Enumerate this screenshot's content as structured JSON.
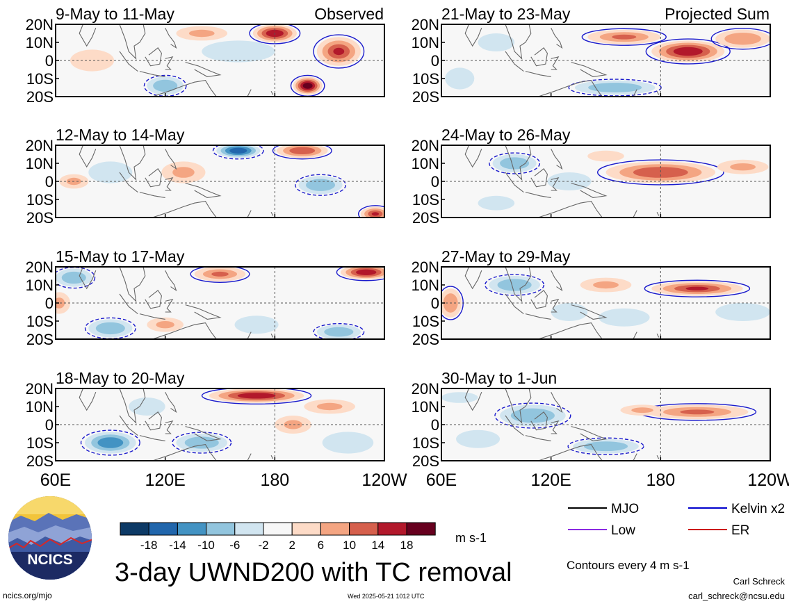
{
  "chart_data": {
    "type": "heatmap",
    "title": "3-day UWND200 with TC removal",
    "units": "m s-1",
    "contour_note": "Contours every 4 m s-1",
    "colorbar": {
      "ticks": [
        "-18",
        "-14",
        "-10",
        "-6",
        "-2",
        "2",
        "6",
        "10",
        "14",
        "18"
      ],
      "colors": [
        "#0d3a66",
        "#2166ac",
        "#4393c3",
        "#92c5de",
        "#d1e5f0",
        "#f7f7f7",
        "#fddbc7",
        "#f4a582",
        "#d6604d",
        "#b2182b",
        "#67001f"
      ]
    },
    "x_ticks": [
      "60E",
      "120E",
      "180",
      "120W"
    ],
    "y_ticks": [
      "20N",
      "10N",
      "0",
      "10S",
      "20S"
    ],
    "x_range_deg_east": [
      60,
      240
    ],
    "y_range_deg_north": [
      -20,
      20
    ],
    "legend": [
      {
        "label": "MJO",
        "color": "#000000"
      },
      {
        "label": "Kelvin x2",
        "color": "#0000cc"
      },
      {
        "label": "Low",
        "color": "#8a2be2"
      },
      {
        "label": "ER",
        "color": "#cc0000"
      }
    ],
    "panels": [
      {
        "col": 0,
        "row": 0,
        "period": "9-May to 11-May",
        "label": "Observed",
        "blobs": [
          [
            180,
            15,
            12,
            5,
            16
          ],
          [
            198,
            -14,
            8,
            5,
            20
          ],
          [
            215,
            5,
            12,
            8,
            14
          ],
          [
            120,
            -14,
            10,
            5,
            -8
          ],
          [
            160,
            5,
            20,
            6,
            -5
          ],
          [
            80,
            0,
            12,
            6,
            4
          ],
          [
            140,
            15,
            14,
            4,
            6
          ]
        ]
      },
      {
        "col": 0,
        "row": 1,
        "period": "12-May to 14-May",
        "label": "",
        "blobs": [
          [
            160,
            17,
            12,
            4,
            -18
          ],
          [
            195,
            17,
            14,
            4,
            12
          ],
          [
            130,
            5,
            12,
            6,
            6
          ],
          [
            205,
            -2,
            12,
            5,
            -8
          ],
          [
            90,
            5,
            12,
            6,
            -6
          ],
          [
            235,
            -18,
            8,
            4,
            14
          ],
          [
            70,
            0,
            8,
            4,
            6
          ]
        ]
      },
      {
        "col": 0,
        "row": 2,
        "period": "15-May to 17-May",
        "label": "",
        "blobs": [
          [
            150,
            16,
            14,
            4,
            10
          ],
          [
            230,
            17,
            14,
            4,
            16
          ],
          [
            70,
            14,
            10,
            5,
            -10
          ],
          [
            90,
            -14,
            12,
            5,
            -8
          ],
          [
            170,
            -12,
            12,
            5,
            -6
          ],
          [
            120,
            -12,
            10,
            4,
            6
          ],
          [
            215,
            -16,
            12,
            4,
            -8
          ],
          [
            62,
            0,
            6,
            6,
            6
          ]
        ]
      },
      {
        "col": 0,
        "row": 3,
        "period": "18-May to 20-May",
        "label": "",
        "blobs": [
          [
            170,
            16,
            26,
            4,
            16
          ],
          [
            210,
            10,
            14,
            4,
            6
          ],
          [
            90,
            -10,
            14,
            6,
            -12
          ],
          [
            140,
            -10,
            14,
            5,
            -10
          ],
          [
            220,
            -10,
            14,
            6,
            -6
          ],
          [
            110,
            10,
            10,
            5,
            -4
          ],
          [
            190,
            0,
            10,
            5,
            6
          ]
        ]
      },
      {
        "col": 1,
        "row": 0,
        "period": "21-May to 23-May",
        "label": "Projected Sum",
        "blobs": [
          [
            195,
            5,
            20,
            6,
            16
          ],
          [
            160,
            13,
            20,
            4,
            10
          ],
          [
            225,
            12,
            15,
            5,
            8
          ],
          [
            155,
            -15,
            22,
            4,
            -8
          ],
          [
            70,
            -10,
            8,
            6,
            -5
          ],
          [
            90,
            10,
            10,
            5,
            -4
          ]
        ]
      },
      {
        "col": 1,
        "row": 1,
        "period": "24-May to 26-May",
        "label": "",
        "blobs": [
          [
            180,
            5,
            30,
            6,
            12
          ],
          [
            100,
            10,
            12,
            5,
            -8
          ],
          [
            130,
            0,
            12,
            5,
            -6
          ],
          [
            225,
            8,
            14,
            4,
            6
          ],
          [
            90,
            -12,
            10,
            4,
            -4
          ],
          [
            150,
            14,
            10,
            3,
            4
          ]
        ]
      },
      {
        "col": 1,
        "row": 2,
        "period": "27-May to 29-May",
        "label": "",
        "blobs": [
          [
            200,
            8,
            25,
            4,
            14
          ],
          [
            150,
            10,
            14,
            4,
            6
          ],
          [
            100,
            10,
            14,
            5,
            -8
          ],
          [
            130,
            -5,
            10,
            5,
            -6
          ],
          [
            160,
            -8,
            14,
            5,
            -6
          ],
          [
            65,
            0,
            6,
            8,
            8
          ],
          [
            225,
            -5,
            15,
            5,
            -4
          ]
        ]
      },
      {
        "col": 1,
        "row": 3,
        "period": "30-May to 1-Jun",
        "label": "",
        "blobs": [
          [
            110,
            5,
            18,
            6,
            -10
          ],
          [
            200,
            7,
            28,
            4,
            10
          ],
          [
            150,
            -12,
            18,
            4,
            -8
          ],
          [
            80,
            -8,
            12,
            5,
            -6
          ],
          [
            170,
            8,
            12,
            3,
            6
          ],
          [
            70,
            15,
            10,
            3,
            -4
          ]
        ]
      }
    ]
  },
  "footer": {
    "left_url": "ncics.org/mjo",
    "timestamp": "Wed 2025-05-21 1012 UTC",
    "author": "Carl Schreck",
    "email": "carl_schreck@ncsu.edu"
  },
  "logo_text": "NCICS"
}
